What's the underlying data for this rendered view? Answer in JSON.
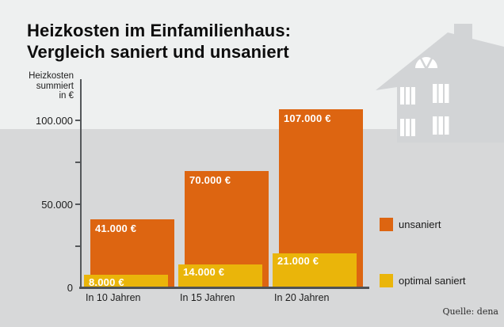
{
  "title": {
    "line1": "Heizkosten im Einfamilienhaus:",
    "line2": "Vergleich saniert und unsaniert"
  },
  "chart_data": {
    "type": "bar",
    "title": "Heizkosten im Einfamilienhaus: Vergleich saniert und unsaniert",
    "ylabel": "Heizkosten summiert in €",
    "ylabel_lines": [
      "Heizkosten",
      "summiert",
      "in €"
    ],
    "ylim": [
      0,
      110000
    ],
    "yticks": [
      0,
      25000,
      50000,
      75000,
      100000
    ],
    "ytick_labels": [
      "100.000",
      "50.000",
      "0"
    ],
    "grid": false,
    "legend_position": "right",
    "categories": [
      "In 10 Jahren",
      "In 15 Jahren",
      "In 20 Jahren"
    ],
    "series": [
      {
        "name": "unsaniert",
        "values": [
          41000,
          70000,
          107000
        ],
        "value_labels": [
          "41.000 €",
          "70.000 €",
          "107.000 €"
        ]
      },
      {
        "name": "optimal saniert",
        "values": [
          8000,
          14000,
          21000
        ],
        "value_labels": [
          "8.000 €",
          "14.000 €",
          "21.000 €"
        ]
      }
    ]
  },
  "legend": {
    "unsaniert": "unsaniert",
    "saniert": "optimal saniert"
  },
  "source": "Quelle: dena",
  "colors": {
    "unsaniert": "#dd6511",
    "saniert": "#eab50a",
    "band_top": "#eef0f0",
    "band_bottom": "#d7d8d9",
    "house": "#d2d4d6",
    "axis": "#54575a"
  }
}
